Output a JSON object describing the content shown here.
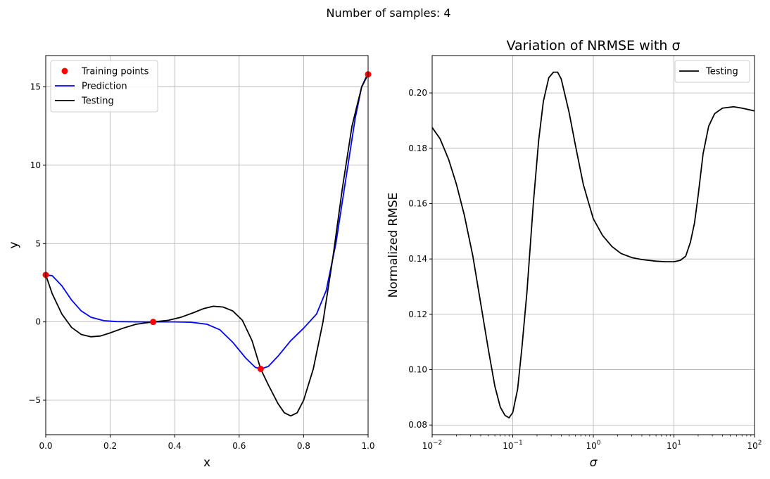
{
  "suptitle": "Number of samples: 4",
  "chart_data": [
    {
      "type": "line",
      "title": "",
      "xlabel": "x",
      "ylabel": "y",
      "xlim": [
        0.0,
        1.0
      ],
      "ylim": [
        -7.2,
        17.0
      ],
      "xticks": [
        0.0,
        0.2,
        0.4,
        0.6,
        0.8,
        1.0
      ],
      "xtick_labels": [
        "0.0",
        "0.2",
        "0.4",
        "0.6",
        "0.8",
        "1.0"
      ],
      "yticks": [
        -5,
        0,
        5,
        10,
        15
      ],
      "ytick_labels": [
        "−5",
        "0",
        "5",
        "10",
        "15"
      ],
      "grid": true,
      "legend": "upper-left",
      "series": [
        {
          "name": "Training points",
          "type": "scatter",
          "color": "#ff0000",
          "points": [
            [
              0.0,
              3.0
            ],
            [
              0.3333,
              0.0
            ],
            [
              0.6667,
              -3.0
            ],
            [
              1.0,
              15.8
            ]
          ]
        },
        {
          "name": "Prediction",
          "type": "line",
          "color": "#0000ff",
          "points": [
            [
              0.0,
              3.0
            ],
            [
              0.02,
              2.95
            ],
            [
              0.05,
              2.3
            ],
            [
              0.08,
              1.4
            ],
            [
              0.11,
              0.7
            ],
            [
              0.14,
              0.3
            ],
            [
              0.18,
              0.08
            ],
            [
              0.22,
              0.02
            ],
            [
              0.3,
              0.0
            ],
            [
              0.3333,
              0.0
            ],
            [
              0.4,
              0.0
            ],
            [
              0.45,
              -0.02
            ],
            [
              0.5,
              -0.15
            ],
            [
              0.54,
              -0.5
            ],
            [
              0.58,
              -1.3
            ],
            [
              0.62,
              -2.3
            ],
            [
              0.65,
              -2.9
            ],
            [
              0.6667,
              -3.0
            ],
            [
              0.69,
              -2.85
            ],
            [
              0.72,
              -2.2
            ],
            [
              0.76,
              -1.2
            ],
            [
              0.8,
              -0.4
            ],
            [
              0.84,
              0.5
            ],
            [
              0.87,
              2.0
            ],
            [
              0.9,
              5.0
            ],
            [
              0.93,
              9.0
            ],
            [
              0.96,
              13.0
            ],
            [
              0.98,
              15.0
            ],
            [
              1.0,
              15.9
            ]
          ]
        },
        {
          "name": "Testing",
          "type": "line",
          "color": "#000000",
          "points": [
            [
              0.0,
              3.0
            ],
            [
              0.02,
              1.8
            ],
            [
              0.05,
              0.5
            ],
            [
              0.08,
              -0.35
            ],
            [
              0.11,
              -0.8
            ],
            [
              0.14,
              -0.95
            ],
            [
              0.17,
              -0.9
            ],
            [
              0.2,
              -0.7
            ],
            [
              0.24,
              -0.4
            ],
            [
              0.28,
              -0.15
            ],
            [
              0.3333,
              0.0
            ],
            [
              0.38,
              0.1
            ],
            [
              0.42,
              0.3
            ],
            [
              0.46,
              0.6
            ],
            [
              0.49,
              0.85
            ],
            [
              0.52,
              1.0
            ],
            [
              0.55,
              0.95
            ],
            [
              0.58,
              0.7
            ],
            [
              0.61,
              0.1
            ],
            [
              0.64,
              -1.2
            ],
            [
              0.6667,
              -3.0
            ],
            [
              0.69,
              -4.0
            ],
            [
              0.72,
              -5.2
            ],
            [
              0.74,
              -5.8
            ],
            [
              0.76,
              -6.0
            ],
            [
              0.78,
              -5.8
            ],
            [
              0.8,
              -5.0
            ],
            [
              0.83,
              -3.0
            ],
            [
              0.86,
              0.0
            ],
            [
              0.89,
              4.0
            ],
            [
              0.92,
              8.5
            ],
            [
              0.95,
              12.5
            ],
            [
              0.98,
              15.0
            ],
            [
              1.0,
              15.8
            ]
          ]
        }
      ]
    },
    {
      "type": "line",
      "title": "Variation of NRMSE with σ",
      "xlabel": "σ",
      "ylabel": "Normalized RMSE",
      "xscale": "log",
      "xlim": [
        0.01,
        100
      ],
      "ylim": [
        0.0765,
        0.2135
      ],
      "xticks": [
        0.01,
        0.1,
        1,
        10,
        100
      ],
      "xtick_labels": [
        {
          "base": "10",
          "exp": "−2"
        },
        {
          "base": "10",
          "exp": "−1"
        },
        {
          "base": "10",
          "exp": "0"
        },
        {
          "base": "10",
          "exp": "1"
        },
        {
          "base": "10",
          "exp": "2"
        }
      ],
      "yticks": [
        0.08,
        0.1,
        0.12,
        0.14,
        0.16,
        0.18,
        0.2
      ],
      "ytick_labels": [
        "0.08",
        "0.10",
        "0.12",
        "0.14",
        "0.16",
        "0.18",
        "0.20"
      ],
      "grid": true,
      "legend": "upper-right",
      "series": [
        {
          "name": "Testing",
          "type": "line",
          "color": "#000000",
          "points": [
            [
              0.01,
              0.1875
            ],
            [
              0.0125,
              0.1835
            ],
            [
              0.016,
              0.176
            ],
            [
              0.02,
              0.167
            ],
            [
              0.025,
              0.156
            ],
            [
              0.032,
              0.141
            ],
            [
              0.04,
              0.124
            ],
            [
              0.05,
              0.107
            ],
            [
              0.06,
              0.094
            ],
            [
              0.07,
              0.0865
            ],
            [
              0.08,
              0.0835
            ],
            [
              0.09,
              0.0826
            ],
            [
              0.1,
              0.0845
            ],
            [
              0.115,
              0.093
            ],
            [
              0.13,
              0.108
            ],
            [
              0.15,
              0.128
            ],
            [
              0.18,
              0.16
            ],
            [
              0.21,
              0.183
            ],
            [
              0.24,
              0.197
            ],
            [
              0.28,
              0.2055
            ],
            [
              0.32,
              0.2075
            ],
            [
              0.36,
              0.2075
            ],
            [
              0.4,
              0.205
            ],
            [
              0.5,
              0.193
            ],
            [
              0.6,
              0.181
            ],
            [
              0.75,
              0.167
            ],
            [
              0.9,
              0.159
            ],
            [
              1.0,
              0.1545
            ],
            [
              1.3,
              0.1485
            ],
            [
              1.7,
              0.1445
            ],
            [
              2.2,
              0.142
            ],
            [
              3.0,
              0.1405
            ],
            [
              4.0,
              0.1398
            ],
            [
              6.0,
              0.1392
            ],
            [
              8.0,
              0.139
            ],
            [
              10.0,
              0.139
            ],
            [
              12.0,
              0.1395
            ],
            [
              14.0,
              0.141
            ],
            [
              16.0,
              0.146
            ],
            [
              18.0,
              0.153
            ],
            [
              20.0,
              0.163
            ],
            [
              23.0,
              0.178
            ],
            [
              27.0,
              0.188
            ],
            [
              32.0,
              0.1925
            ],
            [
              40.0,
              0.1945
            ],
            [
              55.0,
              0.195
            ],
            [
              70.0,
              0.1945
            ],
            [
              100.0,
              0.1935
            ]
          ]
        }
      ]
    }
  ]
}
